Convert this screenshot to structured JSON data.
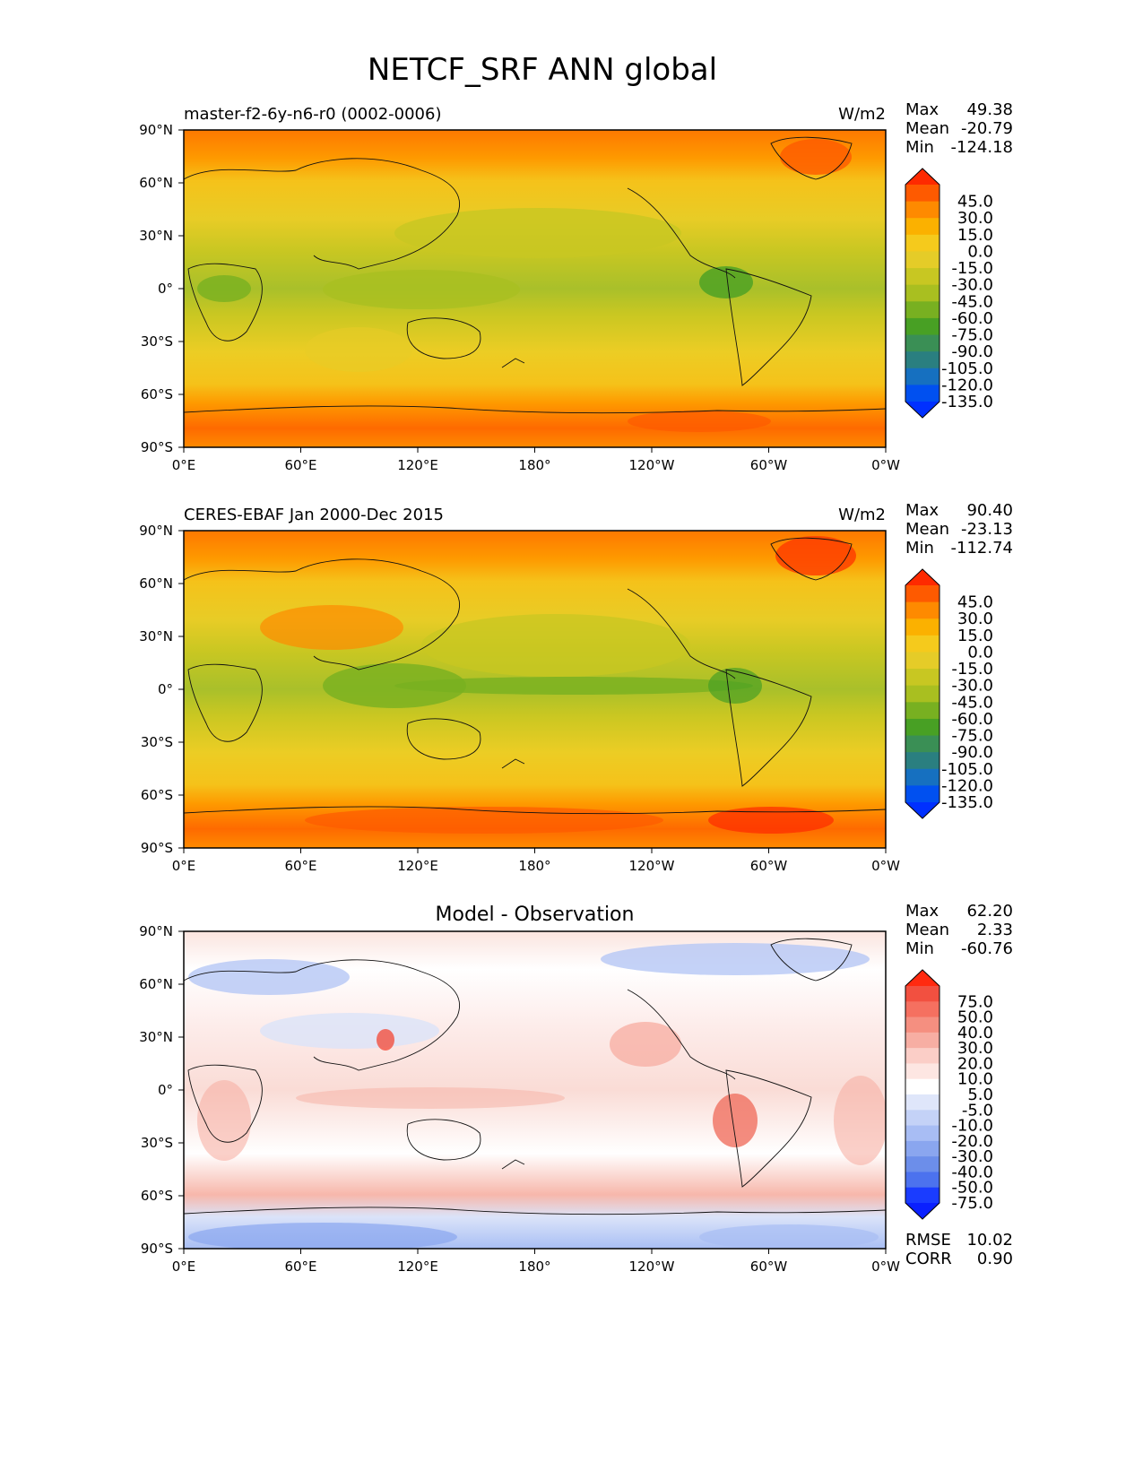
{
  "figure_title": "NETCF_SRF ANN global",
  "axes": {
    "lat_ticks": [
      "90°N",
      "60°N",
      "30°N",
      "0°",
      "30°S",
      "60°S",
      "90°S"
    ],
    "lon_ticks": [
      "0°E",
      "60°E",
      "120°E",
      "180°",
      "120°W",
      "60°W",
      "0°W"
    ]
  },
  "stat_labels": {
    "max": "Max",
    "mean": "Mean",
    "min": "Min",
    "rmse": "RMSE",
    "corr": "CORR"
  },
  "panels": [
    {
      "id": "model",
      "left_title": "master-f2-6y-n6-r0 (0002-0006)",
      "center_title": "",
      "units": "W/m2",
      "stats": {
        "max": "49.38",
        "mean": "-20.79",
        "min": "-124.18"
      },
      "colorbar": {
        "labels": [
          "45.0",
          "30.0",
          "15.0",
          "0.0",
          "-15.0",
          "-30.0",
          "-45.0",
          "-60.0",
          "-75.0",
          "-90.0",
          "-105.0",
          "-120.0",
          "-135.0"
        ],
        "colors": [
          "#fe2a00",
          "#fe5a00",
          "#fe8a00",
          "#fbb100",
          "#f5ca1c",
          "#e5cc28",
          "#c8c722",
          "#a9bf20",
          "#78b021",
          "#48a024",
          "#3a8f55",
          "#2a7f80",
          "#1670c0",
          "#0050f0",
          "#0030ff"
        ]
      }
    },
    {
      "id": "obs",
      "left_title": "CERES-EBAF Jan 2000-Dec 2015",
      "center_title": "",
      "units": "W/m2",
      "stats": {
        "max": "90.40",
        "mean": "-23.13",
        "min": "-112.74"
      },
      "colorbar": {
        "labels": [
          "45.0",
          "30.0",
          "15.0",
          "0.0",
          "-15.0",
          "-30.0",
          "-45.0",
          "-60.0",
          "-75.0",
          "-90.0",
          "-105.0",
          "-120.0",
          "-135.0"
        ],
        "colors": [
          "#fe2a00",
          "#fe5a00",
          "#fe8a00",
          "#fbb100",
          "#f5ca1c",
          "#e5cc28",
          "#c8c722",
          "#a9bf20",
          "#78b021",
          "#48a024",
          "#3a8f55",
          "#2a7f80",
          "#1670c0",
          "#0050f0",
          "#0030ff"
        ]
      }
    },
    {
      "id": "diff",
      "left_title": "",
      "center_title": "Model - Observation",
      "units": "",
      "stats": {
        "max": "62.20",
        "mean": "2.33",
        "min": "-60.76",
        "rmse": "10.02",
        "corr": "0.90"
      },
      "colorbar": {
        "labels": [
          "75.0",
          "50.0",
          "40.0",
          "30.0",
          "20.0",
          "10.0",
          "5.0",
          "-5.0",
          "-10.0",
          "-20.0",
          "-30.0",
          "-40.0",
          "-50.0",
          "-75.0"
        ],
        "colors": [
          "#ff2a10",
          "#f25040",
          "#f57060",
          "#f58f80",
          "#f7aea3",
          "#fbcec7",
          "#fde6e2",
          "#ffffff",
          "#dfe6fa",
          "#c4d2f7",
          "#a8bdf4",
          "#8aa6ef",
          "#6c8eea",
          "#4c72ee",
          "#1a3cff",
          "#0a20ff"
        ]
      }
    }
  ]
}
